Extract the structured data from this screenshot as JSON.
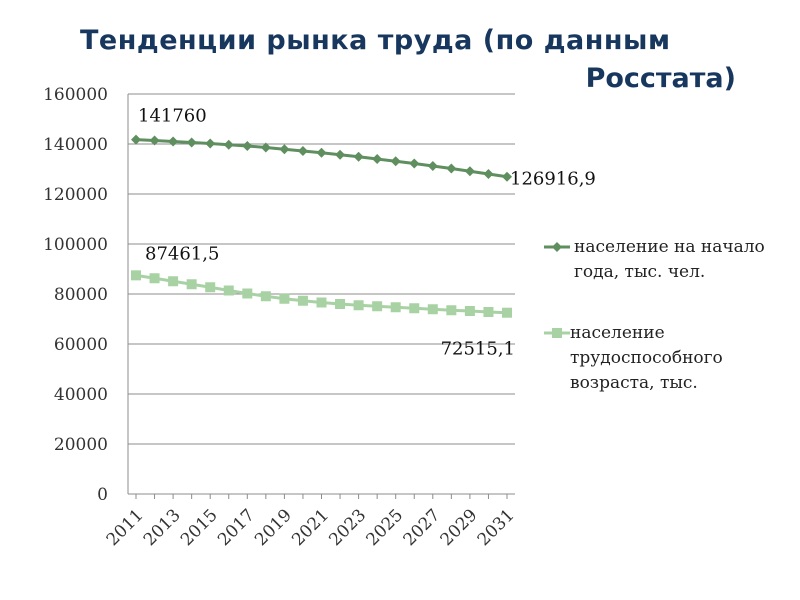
{
  "title": {
    "line1": "Тенденции  рынка труда (по данным",
    "line2": "Росстата)"
  },
  "chart_data": {
    "type": "line",
    "x": [
      2011,
      2012,
      2013,
      2014,
      2015,
      2016,
      2017,
      2018,
      2019,
      2020,
      2021,
      2022,
      2023,
      2024,
      2025,
      2026,
      2027,
      2028,
      2029,
      2030,
      2031
    ],
    "x_tick_labels": [
      "2011",
      "2013",
      "2015",
      "2017",
      "2019",
      "2021",
      "2023",
      "2025",
      "2027",
      "2029",
      "2031"
    ],
    "y_tick_labels": [
      "0",
      "20000",
      "40000",
      "60000",
      "80000",
      "100000",
      "120000",
      "140000",
      "160000"
    ],
    "ylim": [
      0,
      160000
    ],
    "grid": "horizontal",
    "legend_position": "right",
    "series": [
      {
        "name": "население на начало года, тыс. чел.",
        "color": "#5f8f5f",
        "marker": "diamond",
        "values": [
          141760,
          141400,
          141000,
          140600,
          140200,
          139700,
          139200,
          138600,
          137900,
          137200,
          136500,
          135700,
          134900,
          134000,
          133100,
          132200,
          131200,
          130200,
          129100,
          128000,
          126916.9
        ],
        "start_label": "141760",
        "end_label": "126916,9"
      },
      {
        "name": "население трудоспособного возраста, тыс.",
        "color": "#a8d2a4",
        "marker": "square",
        "values": [
          87461.5,
          86300,
          85100,
          83900,
          82700,
          81400,
          80200,
          79100,
          78100,
          77300,
          76600,
          76000,
          75500,
          75100,
          74700,
          74300,
          73900,
          73500,
          73200,
          72800,
          72515.1
        ],
        "start_label": "87461,5",
        "end_label": "72515,1"
      }
    ]
  }
}
